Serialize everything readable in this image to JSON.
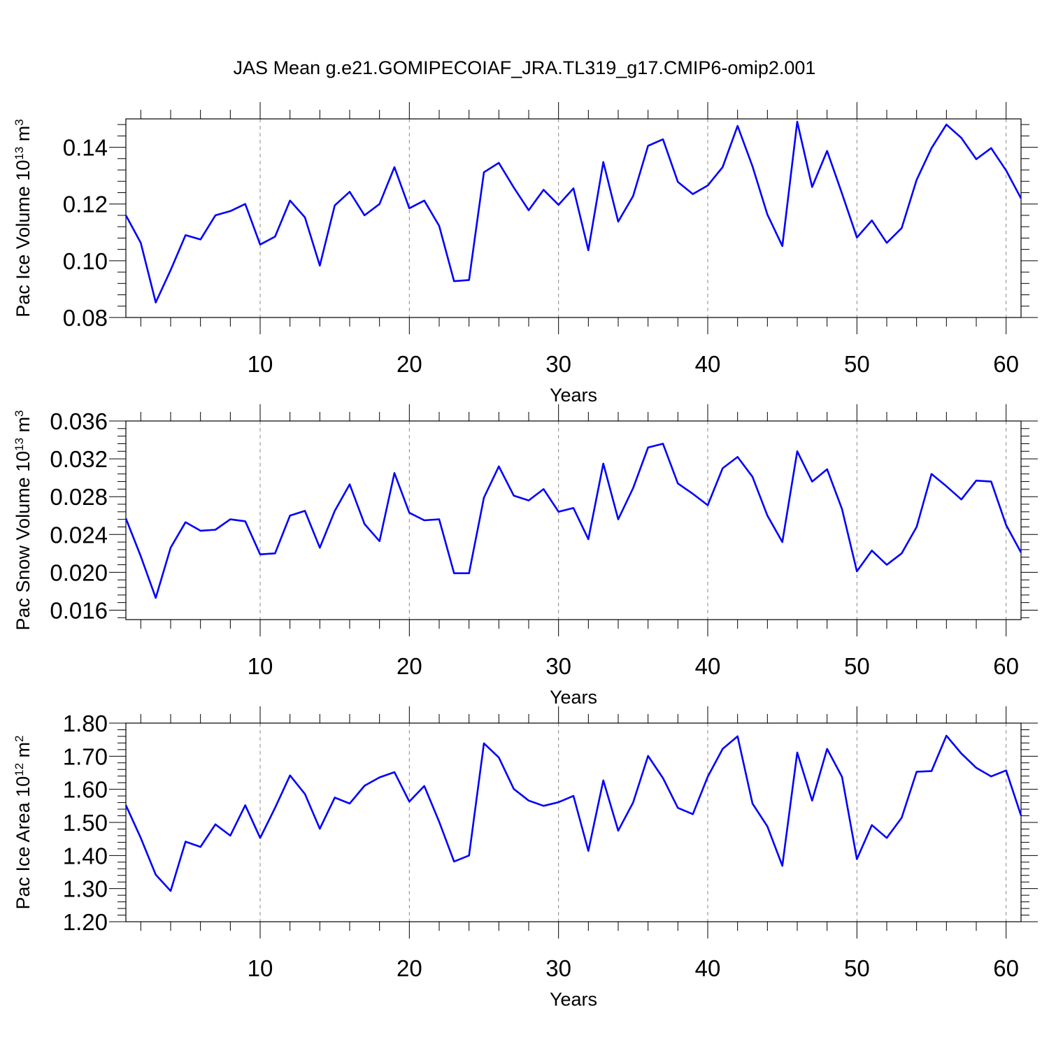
{
  "title": "JAS Mean g.e21.GOMIPECOIAF_JRA.TL319_g17.CMIP6-omip2.001",
  "colors": {
    "line": "#0000ff",
    "axis": "#000000",
    "grid": "#888888"
  },
  "chart_data": [
    {
      "type": "line",
      "ylabel": "Pac Ice Volume 10",
      "ylabel_exp": "13",
      "ylabel_unit": " m",
      "ylabel_unit_exp": "3",
      "xlabel": "Years",
      "xlim": [
        1,
        61
      ],
      "ylim": [
        0.08,
        0.15
      ],
      "yticks": [
        0.08,
        0.1,
        0.12,
        0.14
      ],
      "ytick_labels": [
        "0.08",
        "0.10",
        "0.12",
        "0.14"
      ],
      "xticks": [
        10,
        20,
        30,
        40,
        50,
        60
      ],
      "xtick_labels": [
        "10",
        "20",
        "30",
        "40",
        "50",
        "60"
      ],
      "grid_x": [
        10,
        20,
        30,
        40,
        50,
        60
      ],
      "x_start": 1,
      "values": [
        0.116,
        0.1063,
        0.0853,
        0.0967,
        0.109,
        0.1075,
        0.116,
        0.1175,
        0.12,
        0.1057,
        0.1085,
        0.1212,
        0.1153,
        0.0983,
        0.1195,
        0.1243,
        0.116,
        0.12,
        0.133,
        0.1185,
        0.1212,
        0.1123,
        0.0928,
        0.0932,
        0.1312,
        0.1345,
        0.1258,
        0.1178,
        0.125,
        0.1197,
        0.1255,
        0.1037,
        0.1348,
        0.1138,
        0.1228,
        0.1405,
        0.1428,
        0.1278,
        0.1235,
        0.1265,
        0.133,
        0.1475,
        0.1333,
        0.1163,
        0.1052,
        0.149,
        0.126,
        0.1387,
        0.1237,
        0.1082,
        0.1142,
        0.1063,
        0.1115,
        0.1285,
        0.1397,
        0.148,
        0.1433,
        0.1358,
        0.1397,
        0.1318,
        0.122
      ]
    },
    {
      "type": "line",
      "ylabel": "Pac Snow Volume 10",
      "ylabel_exp": "13",
      "ylabel_unit": " m",
      "ylabel_unit_exp": "3",
      "xlabel": "Years",
      "xlim": [
        1,
        61
      ],
      "ylim": [
        0.015,
        0.036
      ],
      "yticks": [
        0.016,
        0.02,
        0.024,
        0.028,
        0.032,
        0.036
      ],
      "ytick_labels": [
        "0.016",
        "0.020",
        "0.024",
        "0.028",
        "0.032",
        "0.036"
      ],
      "xticks": [
        10,
        20,
        30,
        40,
        50,
        60
      ],
      "xtick_labels": [
        "10",
        "20",
        "30",
        "40",
        "50",
        "60"
      ],
      "grid_x": [
        10,
        20,
        30,
        40,
        50,
        60
      ],
      "x_start": 1,
      "values": [
        0.0257,
        0.0217,
        0.0173,
        0.0226,
        0.0253,
        0.0244,
        0.0245,
        0.0256,
        0.0254,
        0.0219,
        0.022,
        0.026,
        0.0265,
        0.0226,
        0.0265,
        0.0293,
        0.0251,
        0.0233,
        0.0305,
        0.0263,
        0.0255,
        0.0256,
        0.0199,
        0.0199,
        0.0279,
        0.0312,
        0.0281,
        0.0276,
        0.0288,
        0.0264,
        0.0268,
        0.0235,
        0.0315,
        0.0256,
        0.0289,
        0.0332,
        0.0336,
        0.0294,
        0.0283,
        0.0271,
        0.031,
        0.0322,
        0.0301,
        0.026,
        0.0232,
        0.0328,
        0.0296,
        0.0309,
        0.0267,
        0.0201,
        0.0223,
        0.0208,
        0.022,
        0.0248,
        0.0304,
        0.0291,
        0.0277,
        0.0297,
        0.0296,
        0.025,
        0.0221
      ]
    },
    {
      "type": "line",
      "ylabel": "Pac Ice Area 10",
      "ylabel_exp": "12",
      "ylabel_unit": " m",
      "ylabel_unit_exp": "2",
      "xlabel": "Years",
      "xlim": [
        1,
        61
      ],
      "ylim": [
        1.2,
        1.8
      ],
      "yticks": [
        1.2,
        1.3,
        1.4,
        1.5,
        1.6,
        1.7,
        1.8
      ],
      "ytick_labels": [
        "1.20",
        "1.30",
        "1.40",
        "1.50",
        "1.60",
        "1.70",
        "1.80"
      ],
      "xticks": [
        10,
        20,
        30,
        40,
        50,
        60
      ],
      "xtick_labels": [
        "10",
        "20",
        "30",
        "40",
        "50",
        "60"
      ],
      "grid_x": [
        10,
        20,
        30,
        40,
        50,
        60
      ],
      "x_start": 1,
      "values": [
        1.552,
        1.453,
        1.342,
        1.293,
        1.442,
        1.426,
        1.494,
        1.46,
        1.552,
        1.453,
        1.544,
        1.642,
        1.586,
        1.481,
        1.575,
        1.557,
        1.611,
        1.636,
        1.652,
        1.563,
        1.61,
        1.502,
        1.382,
        1.4,
        1.739,
        1.696,
        1.601,
        1.566,
        1.55,
        1.561,
        1.58,
        1.414,
        1.627,
        1.475,
        1.56,
        1.701,
        1.634,
        1.544,
        1.525,
        1.638,
        1.722,
        1.76,
        1.557,
        1.488,
        1.369,
        1.711,
        1.566,
        1.722,
        1.638,
        1.389,
        1.492,
        1.453,
        1.514,
        1.653,
        1.655,
        1.762,
        1.708,
        1.665,
        1.639,
        1.657,
        1.521
      ]
    }
  ]
}
